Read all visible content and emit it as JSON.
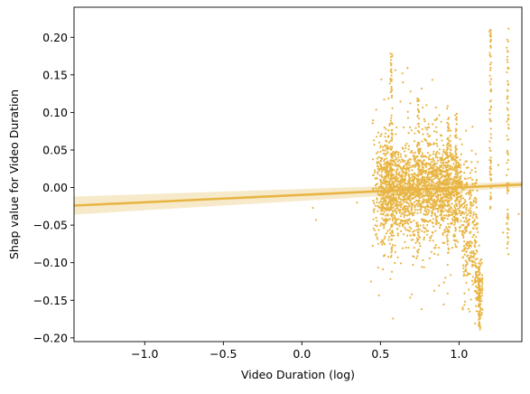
{
  "chart_data": {
    "type": "scatter",
    "title": "",
    "xlabel": "Video Duration (log)",
    "ylabel": "Shap value for Video Duration",
    "xlim": [
      -1.45,
      1.4
    ],
    "ylim": [
      -0.205,
      0.24
    ],
    "x_ticks": [
      -1.0,
      -0.5,
      0.0,
      0.5,
      1.0
    ],
    "x_tick_labels": [
      "−1.0",
      "−0.5",
      "0.0",
      "0.5",
      "1.0"
    ],
    "y_ticks": [
      -0.2,
      -0.15,
      -0.1,
      -0.05,
      0.0,
      0.05,
      0.1,
      0.15,
      0.2
    ],
    "y_tick_labels": [
      "−0.20",
      "−0.15",
      "−0.10",
      "−0.05",
      "0.00",
      "0.05",
      "0.10",
      "0.15",
      "0.20"
    ],
    "grid": false,
    "color": "#e8b544",
    "band_color": "#f6e6c2",
    "regression_line": {
      "x": [
        -1.45,
        1.4
      ],
      "y": [
        -0.024,
        0.004
      ]
    },
    "confidence_band": {
      "x": [
        -1.45,
        1.4
      ],
      "upper": [
        -0.012,
        0.008
      ],
      "lower": [
        -0.036,
        0.0
      ]
    },
    "clusters": [
      {
        "x_range": [
          0.5,
          1.02
        ],
        "y_center": 0.0,
        "y_spread": 0.05,
        "count": 1700
      },
      {
        "x_range": [
          0.55,
          0.95
        ],
        "y_center": 0.0,
        "y_spread": 0.11,
        "count": 300
      },
      {
        "x_range": [
          0.45,
          0.58
        ],
        "y_center": 0.0,
        "y_spread": 0.09,
        "count": 220
      },
      {
        "x_range": [
          1.02,
          1.12
        ],
        "y_center": -0.06,
        "y_spread": 0.09,
        "count": 260
      },
      {
        "x_range": [
          1.1,
          1.15
        ],
        "y_center": -0.13,
        "y_spread": 0.035,
        "count": 90
      }
    ],
    "columns": [
      {
        "x": 0.57,
        "y_min": -0.1,
        "y_max": 0.18
      },
      {
        "x": 0.74,
        "y_min": -0.1,
        "y_max": 0.12
      },
      {
        "x": 0.93,
        "y_min": -0.09,
        "y_max": 0.12
      },
      {
        "x": 0.98,
        "y_min": -0.08,
        "y_max": 0.1
      },
      {
        "x": 1.2,
        "y_min": -0.03,
        "y_max": 0.21
      },
      {
        "x": 1.31,
        "y_min": -0.09,
        "y_max": 0.22
      },
      {
        "x": 1.13,
        "y_min": -0.19,
        "y_max": -0.1
      }
    ],
    "outliers": [
      {
        "x": 0.07,
        "y": -0.027
      },
      {
        "x": 0.09,
        "y": -0.043
      },
      {
        "x": 0.44,
        "y": -0.125
      },
      {
        "x": 0.35,
        "y": -0.02
      },
      {
        "x": 1.25,
        "y": 0.03
      },
      {
        "x": 1.28,
        "y": -0.06
      },
      {
        "x": 1.38,
        "y": -0.035
      }
    ]
  }
}
